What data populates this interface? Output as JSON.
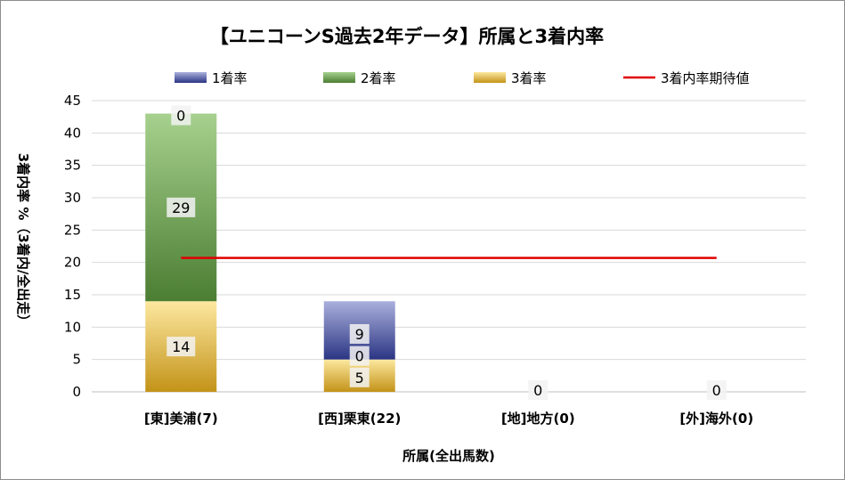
{
  "chart_data": {
    "type": "bar",
    "title": "【ユニコーンS過去2年データ】所属と3着内率",
    "xlabel": "所属(全出馬数)",
    "ylabel": "3着内率 %（3着内/全出走）",
    "categories": [
      "[東]美浦(7)",
      "[西]栗東(22)",
      "[地]地方(0)",
      "[外]海外(0)"
    ],
    "series": [
      {
        "name": "1着率",
        "values": [
          0,
          9,
          0,
          0
        ],
        "color": "#2e3a86"
      },
      {
        "name": "2着率",
        "values": [
          29,
          0,
          0,
          0
        ],
        "color": "#4d7f35"
      },
      {
        "name": "3着率",
        "values": [
          14,
          5,
          0,
          0
        ],
        "color": "#c8961c"
      }
    ],
    "line": {
      "name": "3着内率期待値",
      "value": 20.7,
      "color": "#e00000"
    },
    "bar_labels": [
      [
        "14",
        "29",
        "0"
      ],
      [
        "5",
        "0",
        "9"
      ],
      [
        "0"
      ],
      [
        "0"
      ]
    ],
    "ylim": [
      0,
      45
    ],
    "yticks": [
      "0",
      "5",
      "10",
      "15",
      "20",
      "25",
      "30",
      "35",
      "40",
      "45"
    ],
    "grid": true,
    "legend_position": "top"
  }
}
